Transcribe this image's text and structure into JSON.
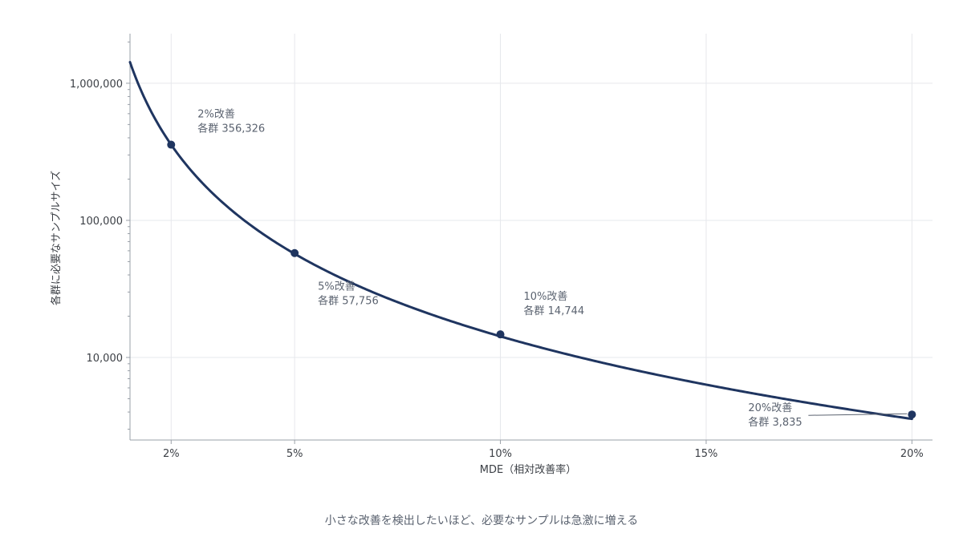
{
  "chart_data": {
    "type": "line",
    "title": "",
    "xlabel": "MDE（相対改善率）",
    "ylabel": "各群に必要なサンプルサイズ",
    "caption": "小さな改善を検出したいほど、必要なサンプルは急激に増える",
    "x_unit": "percent",
    "y_scale": "log",
    "xlim": [
      1,
      20.5
    ],
    "ylim": [
      2500,
      2300000
    ],
    "grid": true,
    "legend": "none",
    "x_ticks": [
      2,
      5,
      10,
      15,
      20
    ],
    "x_tick_labels": [
      "2%",
      "5%",
      "10%",
      "15%",
      "20%"
    ],
    "y_ticks": [
      10000,
      100000,
      1000000
    ],
    "y_tick_labels": [
      "10,000",
      "100,000",
      "1,000,000"
    ],
    "series": [
      {
        "color": "#1f3560",
        "curve": {
          "constant": 1425300,
          "exponent": 2.0,
          "x_from": 1,
          "x_to": 20
        },
        "x": [
          2,
          5,
          10,
          20
        ],
        "y": [
          356326,
          57756,
          14744,
          3835
        ]
      }
    ],
    "annotations": [
      {
        "x": 2,
        "y": 356326,
        "line1": "2%改善",
        "line2": "各群 356,326"
      },
      {
        "x": 5,
        "y": 57756,
        "line1": "5%改善",
        "line2": "各群 57,756"
      },
      {
        "x": 10,
        "y": 14744,
        "line1": "10%改善",
        "line2": "各群 14,744"
      },
      {
        "x": 20,
        "y": 3835,
        "line1": "20%改善",
        "line2": "各群 3,835"
      }
    ]
  }
}
